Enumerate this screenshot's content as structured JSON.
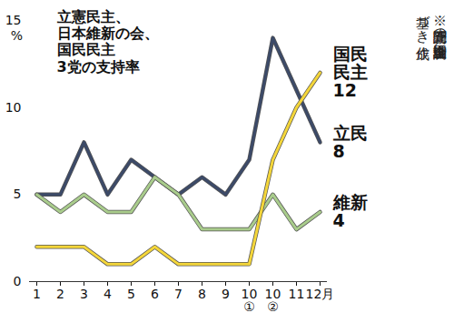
{
  "chart_data": {
    "type": "line",
    "title": "立憲民主、\n日本維新の会、\n国民民主\n3党の支持率",
    "y_label": "%",
    "note": "※読売新聞の全国世論調査に\n基づき作成",
    "categories": [
      "1",
      "2",
      "3",
      "4",
      "5",
      "6",
      "7",
      "8",
      "9",
      "10\n①",
      "10\n②",
      "11",
      "12月"
    ],
    "series": [
      {
        "name": "立民",
        "color": "#3c4a68",
        "values": [
          5,
          5,
          8,
          5,
          7,
          6,
          5,
          6,
          5,
          7,
          14,
          11,
          8
        ]
      },
      {
        "name": "維新",
        "color": "#a9cc8c",
        "values": [
          5,
          4,
          5,
          4,
          4,
          6,
          5,
          3,
          3,
          3,
          5,
          3,
          4
        ]
      },
      {
        "name": "国民\n民主",
        "color": "#f4d63a",
        "values": [
          2,
          2,
          2,
          1,
          1,
          2,
          1,
          1,
          1,
          1,
          7,
          10,
          12
        ]
      }
    ],
    "ylim": [
      0,
      15
    ],
    "yticks": [
      0,
      5,
      10,
      15
    ],
    "grid": false
  }
}
